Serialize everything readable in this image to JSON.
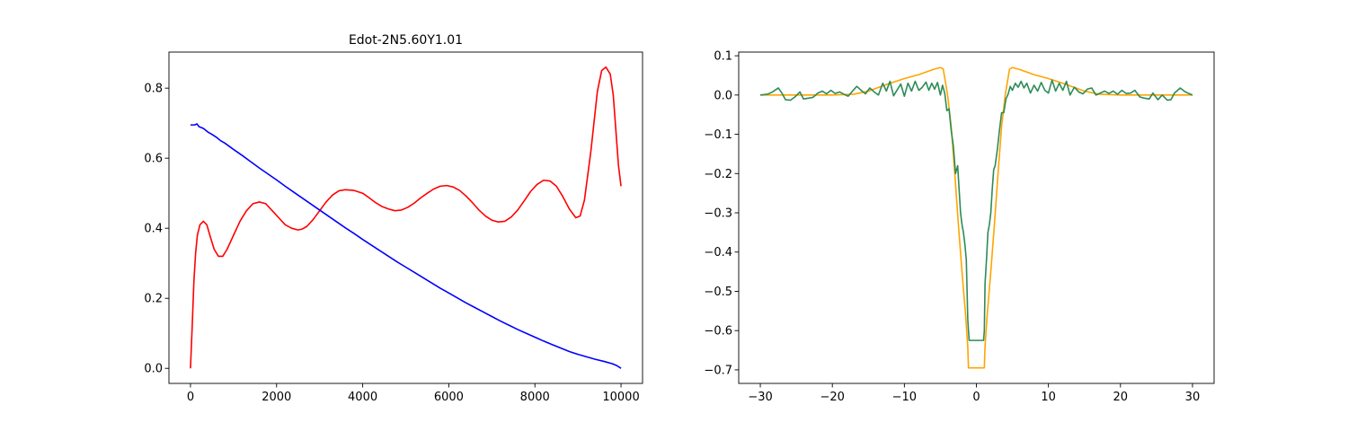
{
  "chart_data": [
    {
      "type": "line",
      "title": "Edot-2N5.60Y1.01",
      "xlabel": "",
      "ylabel": "",
      "xlim": [
        -500,
        10500
      ],
      "ylim": [
        -0.043,
        0.903
      ],
      "xticks": [
        0,
        2000,
        4000,
        6000,
        8000,
        10000
      ],
      "xtick_labels": [
        "0",
        "2000",
        "4000",
        "6000",
        "8000",
        "10000"
      ],
      "yticks": [
        0.0,
        0.2,
        0.4,
        0.6,
        0.8
      ],
      "ytick_labels": [
        "0.0",
        "0.2",
        "0.4",
        "0.6",
        "0.8"
      ],
      "grid": false,
      "series": [
        {
          "color": "#ff0000",
          "x": [
            0,
            40,
            80,
            120,
            160,
            220,
            300,
            380,
            450,
            550,
            650,
            750,
            850,
            1000,
            1150,
            1300,
            1450,
            1600,
            1750,
            1900,
            2050,
            2200,
            2350,
            2500,
            2600,
            2700,
            2850,
            3000,
            3150,
            3300,
            3450,
            3600,
            3800,
            4000,
            4150,
            4300,
            4450,
            4600,
            4750,
            4900,
            5050,
            5200,
            5350,
            5500,
            5650,
            5800,
            5950,
            6100,
            6250,
            6400,
            6550,
            6700,
            6850,
            7000,
            7150,
            7300,
            7450,
            7600,
            7750,
            7900,
            8050,
            8200,
            8350,
            8500,
            8650,
            8800,
            8950,
            9050,
            9150,
            9300,
            9450,
            9550,
            9650,
            9750,
            9820,
            9880,
            9940,
            10000
          ],
          "y": [
            0.0,
            0.12,
            0.25,
            0.33,
            0.38,
            0.41,
            0.42,
            0.41,
            0.38,
            0.34,
            0.32,
            0.32,
            0.34,
            0.38,
            0.42,
            0.45,
            0.47,
            0.475,
            0.47,
            0.45,
            0.43,
            0.41,
            0.4,
            0.395,
            0.398,
            0.405,
            0.425,
            0.45,
            0.475,
            0.495,
            0.507,
            0.51,
            0.508,
            0.5,
            0.487,
            0.473,
            0.462,
            0.455,
            0.45,
            0.452,
            0.46,
            0.472,
            0.487,
            0.5,
            0.512,
            0.52,
            0.522,
            0.518,
            0.508,
            0.492,
            0.473,
            0.452,
            0.435,
            0.423,
            0.418,
            0.42,
            0.432,
            0.452,
            0.478,
            0.505,
            0.525,
            0.537,
            0.535,
            0.52,
            0.49,
            0.455,
            0.43,
            0.435,
            0.48,
            0.62,
            0.79,
            0.85,
            0.86,
            0.84,
            0.78,
            0.68,
            0.58,
            0.52
          ]
        },
        {
          "color": "#0000ff",
          "x": [
            0,
            100,
            150,
            200,
            300,
            400,
            500,
            600,
            700,
            800,
            900,
            1000,
            1200,
            1400,
            1600,
            1800,
            2000,
            2200,
            2400,
            2600,
            2800,
            3000,
            3200,
            3400,
            3600,
            3800,
            4000,
            4200,
            4400,
            4600,
            4800,
            5000,
            5200,
            5400,
            5600,
            5800,
            6000,
            6200,
            6400,
            6600,
            6800,
            7000,
            7200,
            7400,
            7600,
            7800,
            8000,
            8200,
            8400,
            8600,
            8800,
            9000,
            9200,
            9400,
            9600,
            9800,
            9900,
            10000
          ],
          "y": [
            0.695,
            0.695,
            0.698,
            0.69,
            0.685,
            0.675,
            0.668,
            0.66,
            0.65,
            0.643,
            0.634,
            0.625,
            0.608,
            0.59,
            0.572,
            0.555,
            0.538,
            0.52,
            0.503,
            0.486,
            0.469,
            0.452,
            0.435,
            0.418,
            0.401,
            0.385,
            0.368,
            0.352,
            0.336,
            0.32,
            0.304,
            0.289,
            0.274,
            0.259,
            0.244,
            0.229,
            0.215,
            0.201,
            0.187,
            0.174,
            0.161,
            0.148,
            0.135,
            0.123,
            0.111,
            0.1,
            0.089,
            0.078,
            0.068,
            0.058,
            0.048,
            0.04,
            0.033,
            0.026,
            0.02,
            0.013,
            0.008,
            0.0
          ]
        }
      ]
    },
    {
      "type": "line",
      "title": "",
      "xlabel": "",
      "ylabel": "",
      "xlim": [
        -33,
        33
      ],
      "ylim": [
        -0.7345,
        0.1094
      ],
      "xticks": [
        -30,
        -20,
        -10,
        0,
        10,
        20,
        30
      ],
      "xtick_labels": [
        "−30",
        "−20",
        "−10",
        "0",
        "10",
        "20",
        "30"
      ],
      "yticks": [
        0.1,
        0.0,
        -0.1,
        -0.2,
        -0.3,
        -0.4,
        -0.5,
        -0.6,
        -0.7
      ],
      "ytick_labels": [
        "0.1",
        "0.0",
        "−0.1",
        "−0.2",
        "−0.3",
        "−0.4",
        "−0.5",
        "−0.6",
        "−0.7"
      ],
      "grid": false,
      "series": [
        {
          "color": "#ffa500",
          "x": [
            -30,
            -25,
            -20,
            -17,
            -15,
            -12,
            -10,
            -8,
            -6,
            -5,
            -4.6,
            -4,
            -3.5,
            -3,
            -2.5,
            -2,
            -1.5,
            -1.2,
            -1.1,
            -1,
            1,
            1.1,
            1.2,
            1.5,
            2,
            2.5,
            3,
            3.5,
            4,
            4.6,
            5,
            6,
            8,
            10,
            12,
            15,
            17,
            20,
            25,
            30
          ],
          "y": [
            0.0,
            0.0,
            0.0,
            0.002,
            0.01,
            0.03,
            0.042,
            0.052,
            0.065,
            0.07,
            0.066,
            0.0,
            -0.08,
            -0.2,
            -0.33,
            -0.45,
            -0.56,
            -0.64,
            -0.695,
            -0.695,
            -0.695,
            -0.695,
            -0.64,
            -0.56,
            -0.45,
            -0.33,
            -0.2,
            -0.08,
            0.0,
            0.066,
            0.07,
            0.065,
            0.052,
            0.042,
            0.03,
            0.01,
            0.002,
            0.0,
            0.0,
            0.0
          ]
        },
        {
          "color": "#2e8b57",
          "x": [
            -30,
            -29,
            -28.3,
            -27.5,
            -27,
            -26.5,
            -25.8,
            -25.2,
            -24.5,
            -24,
            -23.3,
            -22.7,
            -22,
            -21.4,
            -20.8,
            -20.2,
            -19.6,
            -19,
            -18.4,
            -17.8,
            -17.2,
            -16.6,
            -16,
            -15.4,
            -14.8,
            -14.2,
            -13.6,
            -13,
            -12.5,
            -12,
            -11.5,
            -11,
            -10.5,
            -10,
            -9.5,
            -9,
            -8.5,
            -8,
            -7.5,
            -7,
            -6.6,
            -6.2,
            -5.8,
            -5.4,
            -5,
            -4.7,
            -4.4,
            -4.1,
            -3.8,
            -3.5,
            -3.2,
            -2.9,
            -2.6,
            -2.4,
            -2.2,
            -2,
            -1.8,
            -1.6,
            -1.4,
            -1.2,
            -1.1,
            -1,
            1,
            1.1,
            1.2,
            1.4,
            1.6,
            1.8,
            2,
            2.2,
            2.4,
            2.6,
            2.9,
            3.2,
            3.5,
            3.8,
            4.1,
            4.4,
            4.7,
            5,
            5.4,
            5.8,
            6.2,
            6.6,
            7,
            7.5,
            8,
            8.5,
            9,
            9.5,
            10,
            10.5,
            11,
            11.5,
            12,
            12.5,
            13,
            13.6,
            14.2,
            14.8,
            15.4,
            16,
            16.6,
            17.2,
            17.8,
            18.4,
            19,
            19.6,
            20.2,
            20.8,
            21.4,
            22,
            22.7,
            23.3,
            24,
            24.5,
            25.2,
            25.8,
            26.5,
            27,
            27.5,
            28.3,
            29,
            30
          ],
          "y": [
            0.0,
            0.002,
            0.008,
            0.018,
            0.005,
            -0.012,
            -0.013,
            -0.005,
            0.008,
            -0.01,
            -0.008,
            -0.006,
            0.005,
            0.01,
            0.003,
            0.012,
            0.004,
            0.008,
            0.002,
            -0.003,
            0.01,
            0.022,
            0.012,
            0.003,
            0.018,
            0.008,
            0.0,
            0.03,
            0.01,
            0.035,
            -0.002,
            0.013,
            0.028,
            -0.003,
            0.03,
            0.01,
            0.035,
            0.012,
            0.02,
            0.033,
            0.012,
            0.03,
            0.015,
            0.032,
            0.0,
            0.025,
            0.005,
            -0.04,
            -0.035,
            -0.09,
            -0.13,
            -0.2,
            -0.18,
            -0.24,
            -0.3,
            -0.33,
            -0.35,
            -0.38,
            -0.42,
            -0.57,
            -0.6,
            -0.625,
            -0.625,
            -0.6,
            -0.48,
            -0.42,
            -0.35,
            -0.33,
            -0.3,
            -0.24,
            -0.19,
            -0.18,
            -0.14,
            -0.09,
            -0.045,
            -0.045,
            -0.01,
            0.002,
            0.022,
            0.012,
            0.03,
            0.02,
            0.035,
            0.018,
            0.03,
            0.005,
            0.025,
            0.01,
            0.032,
            0.012,
            0.005,
            0.038,
            0.01,
            0.03,
            0.012,
            0.035,
            0.0,
            0.02,
            0.008,
            0.003,
            0.015,
            0.018,
            0.0,
            0.005,
            0.01,
            0.004,
            0.01,
            0.002,
            0.012,
            0.004,
            0.005,
            0.012,
            -0.005,
            -0.008,
            -0.01,
            0.005,
            -0.012,
            0.0,
            -0.013,
            -0.012,
            0.005,
            0.018,
            0.008,
            0.0
          ]
        }
      ]
    }
  ]
}
